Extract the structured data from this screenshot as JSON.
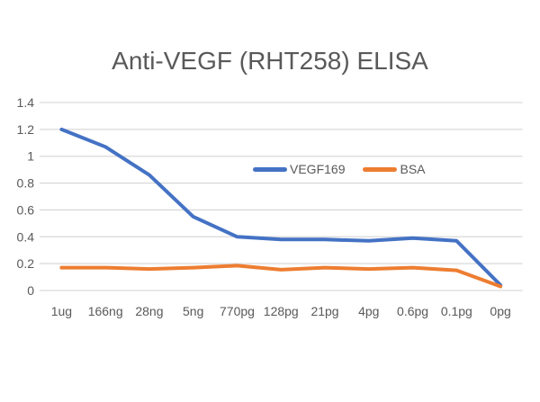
{
  "chart_data": {
    "type": "line",
    "title": "Anti-VEGF (RHT258) ELISA",
    "categories": [
      "1ug",
      "166ng",
      "28ng",
      "5ng",
      "770pg",
      "128pg",
      "21pg",
      "4pg",
      "0.6pg",
      "0.1pg",
      "0pg"
    ],
    "series": [
      {
        "name": "VEGF169",
        "color": "#4472C4",
        "values": [
          1.2,
          1.07,
          0.86,
          0.55,
          0.4,
          0.38,
          0.38,
          0.37,
          0.39,
          0.37,
          0.04
        ]
      },
      {
        "name": "BSA",
        "color": "#ED7D31",
        "values": [
          0.17,
          0.17,
          0.16,
          0.17,
          0.185,
          0.155,
          0.17,
          0.16,
          0.17,
          0.15,
          0.03
        ]
      }
    ],
    "xlabel": "",
    "ylabel": "",
    "ylim": [
      0,
      1.4
    ],
    "y_tick_labels": [
      "0",
      "0.2",
      "0.4",
      "0.6",
      "0.8",
      "1",
      "1.2",
      "1.4"
    ],
    "y_tick_step": 0.2,
    "grid": true,
    "gridline_color": "#D9D9D9",
    "text_color": "#595959",
    "legend_position": "inside-upper-center",
    "legend_entries": [
      "VEGF169",
      "BSA"
    ]
  }
}
